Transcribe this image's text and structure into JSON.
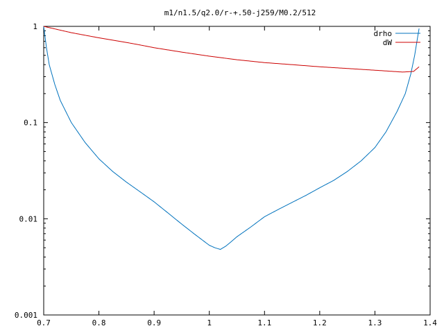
{
  "chart_data": {
    "type": "line",
    "title": "m1/n1.5/q2.0/r-+.50-j259/M0.2/512",
    "xlabel": "",
    "ylabel": "",
    "xlim": [
      0.7,
      1.4
    ],
    "ylim": [
      0.001,
      1
    ],
    "yscale": "log",
    "grid": false,
    "legend": "top-right",
    "xticks": [
      "0.7",
      "0.8",
      "0.9",
      "1",
      "1.1",
      "1.2",
      "1.3",
      "1.4"
    ],
    "xtick_values": [
      0.7,
      0.8,
      0.9,
      1.0,
      1.1,
      1.2,
      1.3,
      1.4
    ],
    "yticks": [
      "0.001",
      "0.01",
      "0.1",
      "1"
    ],
    "ytick_values": [
      0.001,
      0.01,
      0.1,
      1
    ],
    "series": [
      {
        "name": "drho",
        "color": "#0072bd",
        "x": [
          0.7,
          0.705,
          0.71,
          0.72,
          0.73,
          0.75,
          0.775,
          0.8,
          0.825,
          0.85,
          0.875,
          0.9,
          0.925,
          0.95,
          0.975,
          1.0,
          1.01,
          1.02,
          1.03,
          1.04,
          1.05,
          1.075,
          1.1,
          1.125,
          1.15,
          1.175,
          1.2,
          1.225,
          1.25,
          1.275,
          1.3,
          1.32,
          1.34,
          1.355,
          1.365,
          1.372,
          1.377,
          1.38
        ],
        "y": [
          1.0,
          0.6,
          0.4,
          0.25,
          0.17,
          0.1,
          0.062,
          0.042,
          0.031,
          0.024,
          0.019,
          0.015,
          0.0115,
          0.0088,
          0.0068,
          0.0053,
          0.005,
          0.0048,
          0.0052,
          0.0058,
          0.0065,
          0.0082,
          0.0105,
          0.0125,
          0.0148,
          0.0175,
          0.021,
          0.025,
          0.031,
          0.04,
          0.055,
          0.08,
          0.13,
          0.2,
          0.32,
          0.5,
          0.75,
          0.95
        ]
      },
      {
        "name": "dW",
        "color": "#cc0000",
        "x": [
          0.7,
          0.75,
          0.8,
          0.85,
          0.875,
          0.9,
          0.95,
          1.0,
          1.05,
          1.1,
          1.15,
          1.2,
          1.25,
          1.3,
          1.35,
          1.37,
          1.38
        ],
        "y": [
          1.0,
          0.86,
          0.76,
          0.68,
          0.64,
          0.6,
          0.54,
          0.49,
          0.45,
          0.42,
          0.4,
          0.38,
          0.365,
          0.35,
          0.335,
          0.34,
          0.38
        ]
      }
    ]
  }
}
